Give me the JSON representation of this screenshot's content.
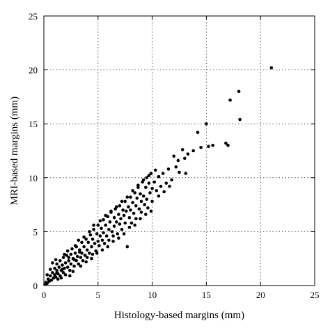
{
  "chart_data": {
    "type": "scatter",
    "title": "",
    "xlabel": "Histology-based margins (mm)",
    "ylabel": "MRI-based margins (mm)",
    "xlim": [
      0,
      25
    ],
    "ylim": [
      0,
      25
    ],
    "xticks": [
      "0",
      "5",
      "10",
      "15",
      "20",
      "25"
    ],
    "yticks": [
      "0",
      "5",
      "10",
      "15",
      "20",
      "25"
    ],
    "grid": true,
    "point_color": "#000000",
    "series": [
      {
        "points": [
          [
            0.1,
            0.1
          ],
          [
            0.2,
            0.3
          ],
          [
            0.3,
            0.2
          ],
          [
            0.4,
            0.6
          ],
          [
            0.5,
            0.4
          ],
          [
            0.6,
            0.9
          ],
          [
            0.7,
            0.5
          ],
          [
            0.8,
            1.2
          ],
          [
            0.9,
            0.7
          ],
          [
            1.0,
            1.0
          ],
          [
            1.0,
            1.6
          ],
          [
            1.1,
            0.8
          ],
          [
            1.2,
            1.4
          ],
          [
            1.2,
            2.0
          ],
          [
            1.3,
            1.1
          ],
          [
            1.4,
            1.7
          ],
          [
            1.5,
            0.9
          ],
          [
            1.5,
            2.3
          ],
          [
            1.6,
            1.4
          ],
          [
            1.7,
            1.9
          ],
          [
            1.8,
            1.2
          ],
          [
            1.8,
            2.6
          ],
          [
            1.9,
            1.6
          ],
          [
            2.0,
            2.1
          ],
          [
            2.0,
            1.0
          ],
          [
            2.1,
            2.8
          ],
          [
            2.2,
            1.7
          ],
          [
            2.3,
            2.3
          ],
          [
            2.4,
            1.4
          ],
          [
            2.5,
            2.9
          ],
          [
            2.5,
            2.0
          ],
          [
            2.6,
            3.4
          ],
          [
            2.7,
            2.5
          ],
          [
            2.8,
            1.8
          ],
          [
            2.9,
            3.0
          ],
          [
            3.0,
            2.3
          ],
          [
            3.0,
            3.6
          ],
          [
            3.1,
            2.7
          ],
          [
            3.2,
            2.0
          ],
          [
            3.3,
            3.3
          ],
          [
            3.4,
            2.6
          ],
          [
            3.5,
            4.0
          ],
          [
            3.5,
            3.0
          ],
          [
            3.6,
            2.3
          ],
          [
            3.7,
            3.6
          ],
          [
            3.8,
            2.8
          ],
          [
            3.9,
            4.3
          ],
          [
            4.0,
            3.3
          ],
          [
            4.0,
            2.6
          ],
          [
            4.1,
            4.0
          ],
          [
            4.2,
            3.0
          ],
          [
            4.3,
            4.7
          ],
          [
            4.4,
            3.6
          ],
          [
            4.5,
            2.9
          ],
          [
            4.5,
            4.3
          ],
          [
            4.6,
            5.2
          ],
          [
            4.7,
            3.9
          ],
          [
            4.8,
            3.2
          ],
          [
            4.9,
            4.8
          ],
          [
            5.0,
            4.1
          ],
          [
            5.0,
            5.6
          ],
          [
            5.1,
            3.7
          ],
          [
            5.2,
            4.6
          ],
          [
            5.3,
            5.3
          ],
          [
            5.4,
            4.2
          ],
          [
            5.5,
            6.1
          ],
          [
            5.5,
            4.9
          ],
          [
            5.6,
            3.9
          ],
          [
            5.7,
            5.6
          ],
          [
            5.8,
            4.6
          ],
          [
            5.9,
            6.4
          ],
          [
            6.0,
            5.2
          ],
          [
            6.0,
            4.2
          ],
          [
            6.1,
            5.9
          ],
          [
            6.2,
            6.8
          ],
          [
            6.3,
            5.0
          ],
          [
            6.4,
            4.6
          ],
          [
            6.5,
            6.3
          ],
          [
            6.5,
            5.5
          ],
          [
            6.6,
            7.1
          ],
          [
            6.7,
            5.9
          ],
          [
            6.8,
            4.8
          ],
          [
            6.9,
            6.6
          ],
          [
            7.0,
            5.7
          ],
          [
            7.0,
            7.4
          ],
          [
            7.1,
            6.2
          ],
          [
            7.2,
            5.2
          ],
          [
            7.3,
            7.0
          ],
          [
            7.4,
            6.5
          ],
          [
            7.5,
            7.8
          ],
          [
            7.5,
            5.8
          ],
          [
            7.6,
            6.9
          ],
          [
            7.7,
            3.6
          ],
          [
            7.8,
            7.3
          ],
          [
            7.9,
            6.3
          ],
          [
            8.0,
            8.2
          ],
          [
            8.0,
            7.0
          ],
          [
            8.1,
            5.8
          ],
          [
            8.2,
            7.7
          ],
          [
            8.3,
            6.7
          ],
          [
            8.4,
            8.6
          ],
          [
            8.5,
            7.4
          ],
          [
            8.5,
            6.2
          ],
          [
            8.6,
            8.1
          ],
          [
            8.7,
            9.1
          ],
          [
            8.8,
            7.1
          ],
          [
            8.9,
            8.5
          ],
          [
            9.0,
            7.8
          ],
          [
            9.0,
            6.8
          ],
          [
            9.1,
            9.6
          ],
          [
            9.2,
            8.3
          ],
          [
            9.3,
            7.5
          ],
          [
            9.4,
            9.1
          ],
          [
            9.5,
            10.0
          ],
          [
            9.5,
            8.0
          ],
          [
            9.6,
            7.2
          ],
          [
            9.7,
            9.5
          ],
          [
            9.8,
            8.6
          ],
          [
            9.9,
            10.4
          ],
          [
            10.0,
            9.0
          ],
          [
            10.0,
            7.8
          ],
          [
            10.2,
            9.6
          ],
          [
            10.4,
            8.8
          ],
          [
            10.6,
            10.1
          ],
          [
            10.8,
            9.2
          ],
          [
            11.0,
            10.4
          ],
          [
            11.3,
            9.5
          ],
          [
            11.5,
            10.8
          ],
          [
            11.8,
            9.8
          ],
          [
            12.0,
            12.0
          ],
          [
            12.2,
            11.0
          ],
          [
            12.5,
            10.5
          ],
          [
            12.8,
            12.6
          ],
          [
            13.0,
            11.8
          ],
          [
            13.3,
            12.2
          ],
          [
            13.8,
            12.5
          ],
          [
            14.2,
            14.2
          ],
          [
            14.5,
            12.8
          ],
          [
            15.0,
            15.0
          ],
          [
            15.2,
            12.9
          ],
          [
            15.6,
            13.0
          ],
          [
            16.8,
            13.2
          ],
          [
            17.0,
            13.0
          ],
          [
            17.2,
            17.2
          ],
          [
            18.0,
            18.0
          ],
          [
            18.1,
            15.4
          ],
          [
            21.0,
            20.2
          ],
          [
            0.3,
            1.0
          ],
          [
            0.6,
            1.5
          ],
          [
            0.8,
            2.1
          ],
          [
            1.1,
            2.4
          ],
          [
            1.3,
            0.6
          ],
          [
            1.6,
            0.7
          ],
          [
            1.9,
            2.9
          ],
          [
            2.2,
            3.2
          ],
          [
            2.4,
            0.9
          ],
          [
            2.7,
            1.3
          ],
          [
            2.9,
            3.7
          ],
          [
            3.2,
            4.2
          ],
          [
            3.4,
            1.8
          ],
          [
            3.7,
            4.5
          ],
          [
            3.9,
            2.2
          ],
          [
            4.2,
            5.0
          ],
          [
            4.4,
            2.5
          ],
          [
            4.6,
            5.6
          ],
          [
            4.9,
            3.0
          ],
          [
            5.2,
            6.0
          ],
          [
            5.4,
            3.3
          ],
          [
            5.7,
            6.5
          ],
          [
            5.9,
            3.6
          ],
          [
            6.2,
            6.9
          ],
          [
            6.4,
            4.1
          ],
          [
            6.7,
            7.3
          ],
          [
            6.9,
            4.4
          ],
          [
            7.2,
            7.8
          ],
          [
            7.4,
            4.8
          ],
          [
            7.7,
            8.2
          ],
          [
            7.9,
            5.4
          ],
          [
            8.2,
            8.8
          ],
          [
            8.4,
            5.6
          ],
          [
            8.7,
            9.3
          ],
          [
            8.9,
            6.2
          ],
          [
            9.2,
            9.8
          ],
          [
            9.4,
            6.6
          ],
          [
            9.7,
            10.2
          ],
          [
            9.9,
            6.9
          ],
          [
            10.3,
            10.7
          ],
          [
            10.6,
            8.3
          ],
          [
            11.1,
            8.7
          ],
          [
            11.6,
            9.2
          ],
          [
            12.4,
            11.6
          ],
          [
            13.1,
            10.4
          ],
          [
            1.2,
            1.2
          ],
          [
            1.7,
            1.5
          ],
          [
            2.3,
            2.6
          ],
          [
            2.8,
            2.4
          ],
          [
            3.3,
            3.1
          ]
        ]
      }
    ]
  }
}
